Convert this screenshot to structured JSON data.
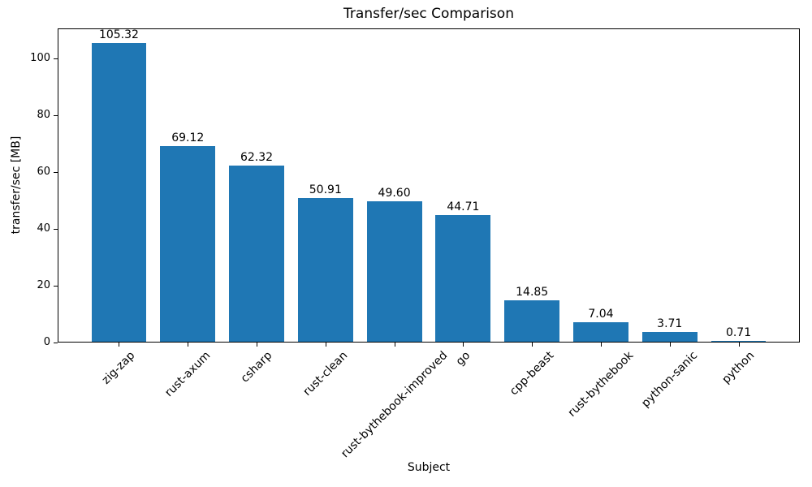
{
  "chart_data": {
    "type": "bar",
    "title": "Transfer/sec Comparison",
    "xlabel": "Subject",
    "ylabel": "transfer/sec [MB]",
    "categories": [
      "zig-zap",
      "rust-axum",
      "csharp",
      "rust-clean",
      "rust-bythebook-improved",
      "go",
      "cpp-beast",
      "rust-bythebook",
      "python-sanic",
      "python"
    ],
    "values": [
      105.32,
      69.12,
      62.32,
      50.91,
      49.6,
      44.71,
      14.85,
      7.04,
      3.71,
      0.71
    ],
    "value_labels": [
      "105.32",
      "69.12",
      "62.32",
      "50.91",
      "49.60",
      "44.71",
      "14.85",
      "7.04",
      "3.71",
      "0.71"
    ],
    "yticks": [
      0,
      20,
      40,
      60,
      80,
      100
    ],
    "ylim": [
      0,
      110.5
    ],
    "grid": false,
    "legend": false,
    "bar_color": "#1f77b4",
    "text_color": "#000000",
    "background_color": "#ffffff"
  }
}
